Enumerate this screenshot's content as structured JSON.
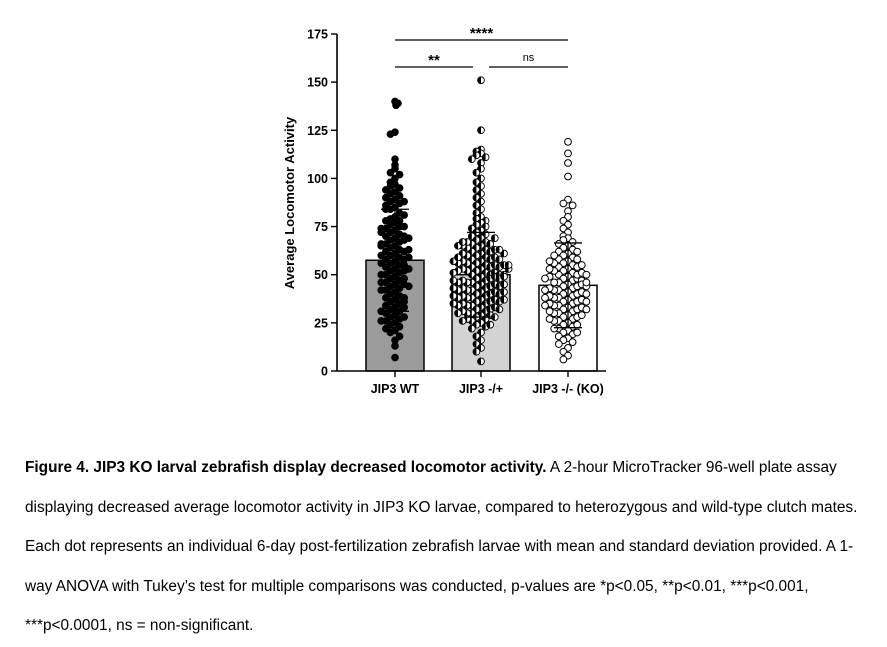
{
  "chart_data": {
    "type": "bar",
    "ylabel": "Average Locomotor Activity",
    "ylim": [
      0,
      175
    ],
    "yticks": [
      "0",
      "25",
      "50",
      "75",
      "100",
      "125",
      "150",
      "175"
    ],
    "categories": [
      "JIP3 WT",
      "JIP3 -/+",
      "JIP3 -/- (KO)"
    ],
    "means": [
      57.5,
      50,
      44.5
    ],
    "sd": [
      26.5,
      22,
      22
    ],
    "bar_colors": [
      "#9b9b9b",
      "#d3d3d3",
      "#ffffff"
    ],
    "point_styles": [
      "filled",
      "half-filled",
      "open"
    ],
    "points": [
      [
        140,
        139,
        138,
        124,
        123,
        110,
        107,
        105,
        103,
        102,
        100,
        98,
        97,
        96,
        95,
        94,
        93,
        92,
        91,
        90,
        89,
        88,
        87,
        86,
        85,
        84,
        82,
        80,
        79,
        78,
        77,
        76,
        75,
        74,
        73,
        72,
        71,
        70,
        69,
        68,
        67,
        66,
        65,
        64,
        63,
        62,
        61,
        60,
        59,
        58,
        57,
        56,
        55,
        54,
        53,
        52,
        51,
        50,
        49,
        48,
        47,
        46,
        45,
        44,
        43,
        42,
        41,
        40,
        39,
        38,
        37,
        36,
        35,
        34,
        33,
        32,
        31,
        30,
        29,
        28,
        27,
        26,
        25,
        24,
        23,
        22,
        21,
        20,
        18,
        16,
        13,
        7,
        45,
        48,
        52,
        55,
        58,
        60,
        62,
        65,
        68,
        70,
        72,
        75,
        78,
        81,
        84,
        88,
        42,
        44,
        46,
        50,
        53,
        56,
        59,
        63,
        66,
        69,
        74,
        38,
        36,
        33,
        31,
        28,
        26
      ],
      [
        151,
        125,
        115,
        114,
        113,
        112,
        111,
        110,
        108,
        105,
        103,
        100,
        98,
        96,
        94,
        92,
        90,
        88,
        86,
        84,
        82,
        80,
        79,
        78,
        77,
        76,
        75,
        74,
        73,
        72,
        71,
        70,
        69,
        68,
        67,
        66,
        65,
        64,
        63,
        62,
        61,
        60,
        59,
        58,
        57,
        56,
        55,
        54,
        53,
        52,
        51,
        50,
        49,
        48,
        47,
        46,
        45,
        44,
        43,
        42,
        41,
        40,
        39,
        38,
        37,
        36,
        35,
        34,
        33,
        32,
        31,
        30,
        29,
        28,
        27,
        26,
        25,
        24,
        23,
        22,
        20,
        18,
        16,
        14,
        12,
        10,
        5,
        50,
        52,
        54,
        56,
        58,
        60,
        62,
        64,
        66,
        48,
        46,
        44,
        42,
        40,
        38,
        36,
        34,
        32,
        30,
        51,
        53,
        55,
        57,
        59,
        61,
        63,
        65,
        67,
        69,
        49,
        47,
        45,
        43,
        41,
        39,
        37,
        35,
        33,
        31,
        29,
        27,
        50,
        52,
        54,
        56,
        58,
        48,
        46,
        44,
        42,
        40,
        38,
        36,
        34,
        32,
        30,
        28,
        26,
        24,
        55,
        57,
        59,
        61,
        63,
        65,
        67,
        45,
        43,
        41,
        39,
        37,
        35,
        50,
        51,
        49,
        47,
        53,
        55
      ],
      [
        119,
        113,
        108,
        101,
        89,
        87,
        86,
        83,
        80,
        78,
        76,
        74,
        72,
        70,
        69,
        68,
        67,
        66,
        65,
        64,
        63,
        62,
        61,
        60,
        59,
        58,
        57,
        56,
        55,
        54,
        53,
        52,
        51,
        50,
        49,
        48,
        47,
        46,
        45,
        44,
        43,
        42,
        41,
        40,
        39,
        38,
        37,
        36,
        35,
        34,
        33,
        32,
        31,
        30,
        29,
        28,
        27,
        26,
        25,
        24,
        23,
        22,
        21,
        20,
        19,
        18,
        17,
        16,
        15,
        14,
        12,
        10,
        8,
        6,
        48,
        50,
        52,
        54,
        56,
        58,
        60,
        62,
        46,
        44,
        42,
        40,
        38,
        36,
        34,
        32,
        30,
        28,
        26,
        24,
        22,
        20,
        47,
        49,
        51,
        53,
        55,
        57,
        45,
        43,
        41,
        39,
        37,
        35,
        33,
        31,
        29,
        27,
        44,
        46,
        48,
        50,
        42,
        40,
        38,
        36,
        34,
        32
      ]
    ],
    "significance": [
      {
        "from": 0,
        "to": 2,
        "label": "****"
      },
      {
        "from": 0,
        "to": 1,
        "label": "**"
      },
      {
        "from": 1,
        "to": 2,
        "label": "ns"
      }
    ]
  },
  "caption": {
    "title": "Figure 4. JIP3 KO larval zebrafish display decreased locomotor activity.",
    "body": " A 2-hour MicroTracker 96-well plate assay displaying decreased average locomotor activity in JIP3 KO larvae, compared to heterozygous and wild-type clutch mates. Each dot represents an individual 6-day post-fertilization zebrafish larvae with mean and standard deviation provided. A 1-way ANOVA with Tukey’s test for multiple comparisons was conducted, p-values are *p<0.05, **p<0.01, ***p<0.001, ***p<0.0001, ns = non-significant."
  }
}
